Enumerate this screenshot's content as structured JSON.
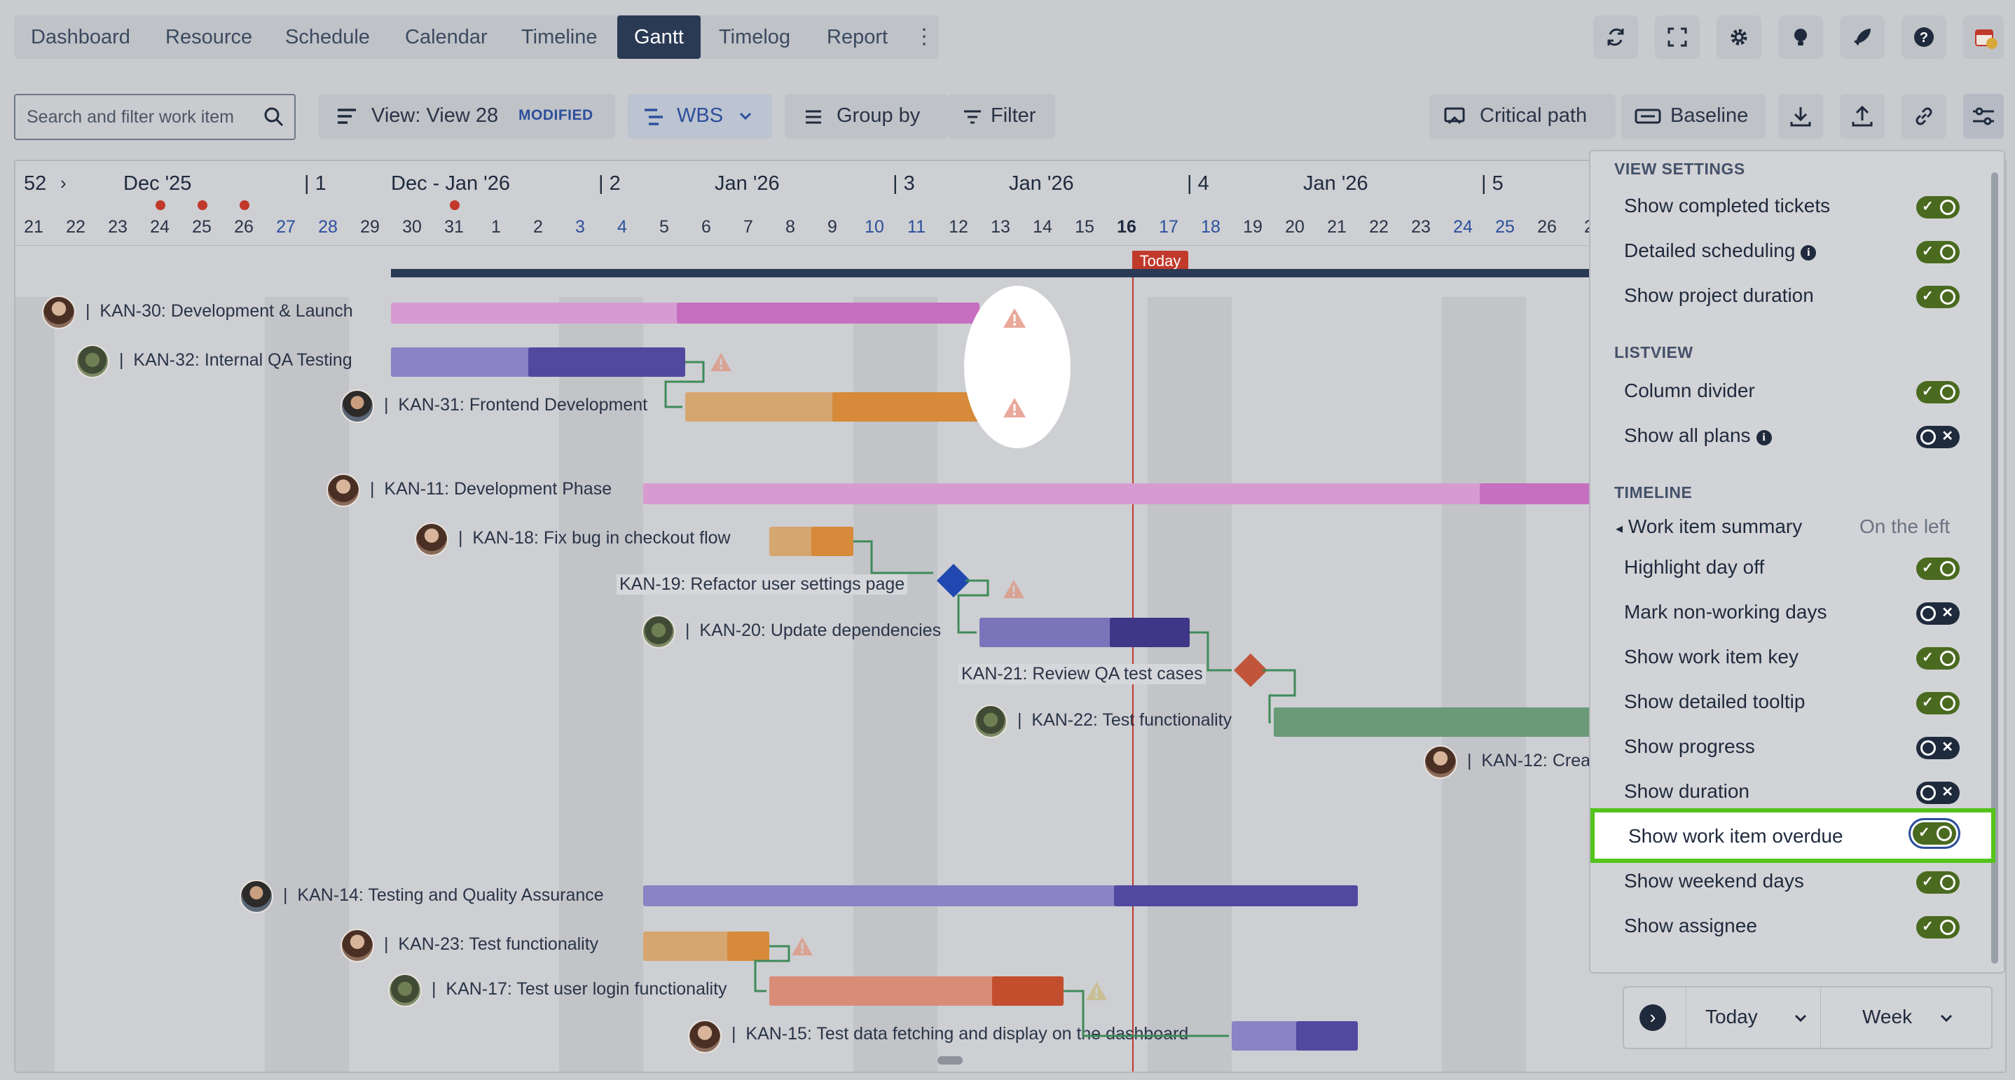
{
  "nav": {
    "tabs": [
      "Dashboard",
      "Resource",
      "Schedule",
      "Calendar",
      "Timeline",
      "Gantt",
      "Timelog",
      "Report"
    ],
    "active": "Gantt"
  },
  "top_icons": [
    "refresh-icon",
    "fullscreen-icon",
    "gear-icon",
    "lightbulb-icon",
    "rocket-icon",
    "help-icon",
    "calendar-clock-icon"
  ],
  "toolbar": {
    "search_placeholder": "Search and filter work item",
    "view_label": "View: View 28",
    "modified_badge": "MODIFIED",
    "wbs_label": "WBS",
    "group_by_label": "Group by",
    "filter_label": "Filter",
    "critical_path_label": "Critical path",
    "baseline_label": "Baseline"
  },
  "timeline": {
    "weeks": [
      {
        "num": "52",
        "month": "Dec '25"
      },
      {
        "num": "1",
        "month": "Dec - Jan '26"
      },
      {
        "num": "2",
        "month": "Jan '26"
      },
      {
        "num": "3",
        "month": "Jan '26"
      },
      {
        "num": "4",
        "month": "Jan '26"
      },
      {
        "num": "5",
        "month": ""
      }
    ],
    "days": [
      "21",
      "22",
      "23",
      "24",
      "25",
      "26",
      "27",
      "28",
      "29",
      "30",
      "31",
      "1",
      "2",
      "3",
      "4",
      "5",
      "6",
      "7",
      "8",
      "9",
      "10",
      "11",
      "12",
      "13",
      "14",
      "15",
      "16",
      "17",
      "18",
      "19",
      "20",
      "21",
      "22",
      "23",
      "24",
      "25",
      "26",
      "2"
    ],
    "today_label": "Today"
  },
  "tasks": [
    {
      "key": "KAN-30",
      "title": "KAN-30: Development & Launch"
    },
    {
      "key": "KAN-32",
      "title": "KAN-32: Internal QA Testing"
    },
    {
      "key": "KAN-31",
      "title": "KAN-31: Frontend Development"
    },
    {
      "key": "KAN-11",
      "title": "KAN-11: Development Phase"
    },
    {
      "key": "KAN-18",
      "title": "KAN-18: Fix bug in checkout flow"
    },
    {
      "key": "KAN-19",
      "title": "KAN-19: Refactor user settings page"
    },
    {
      "key": "KAN-20",
      "title": "KAN-20: Update dependencies"
    },
    {
      "key": "KAN-21",
      "title": "KAN-21: Review QA test cases"
    },
    {
      "key": "KAN-22",
      "title": "KAN-22: Test functionality"
    },
    {
      "key": "KAN-12",
      "title": "KAN-12: Crea"
    },
    {
      "key": "KAN-14",
      "title": "KAN-14: Testing and Quality Assurance"
    },
    {
      "key": "KAN-23",
      "title": "KAN-23: Test functionality"
    },
    {
      "key": "KAN-17",
      "title": "KAN-17: Test user login functionality"
    },
    {
      "key": "KAN-15",
      "title": "KAN-15: Test data fetching and display on the dashboard"
    }
  ],
  "settings": {
    "view_settings_title": "VIEW SETTINGS",
    "listview_title": "LISTVIEW",
    "timeline_title": "TIMELINE",
    "items": [
      {
        "label": "Show completed tickets",
        "on": true
      },
      {
        "label": "Detailed scheduling",
        "on": true
      },
      {
        "label": "Show project duration",
        "on": true
      },
      {
        "label": "Column divider",
        "on": true
      },
      {
        "label": "Show all plans",
        "on": false
      },
      {
        "label": "Highlight day off",
        "on": true
      },
      {
        "label": "Mark non-working days",
        "on": false
      },
      {
        "label": "Show work item key",
        "on": true
      },
      {
        "label": "Show detailed tooltip",
        "on": true
      },
      {
        "label": "Show progress",
        "on": false
      },
      {
        "label": "Show duration",
        "on": false
      },
      {
        "label": "Show work item overdue",
        "on": true
      },
      {
        "label": "Show weekend days",
        "on": true
      },
      {
        "label": "Show assignee",
        "on": true
      }
    ],
    "summary_label": "Work item summary",
    "summary_value": "On the left"
  },
  "bottom": {
    "today_label": "Today",
    "scale_label": "Week"
  },
  "colors": {
    "nav_active": "#2a3a55",
    "toggle_on": "#4a6a1f",
    "toggle_off": "#1f2a3d",
    "highlight": "#52c41a",
    "today_line": "#c0392b"
  }
}
